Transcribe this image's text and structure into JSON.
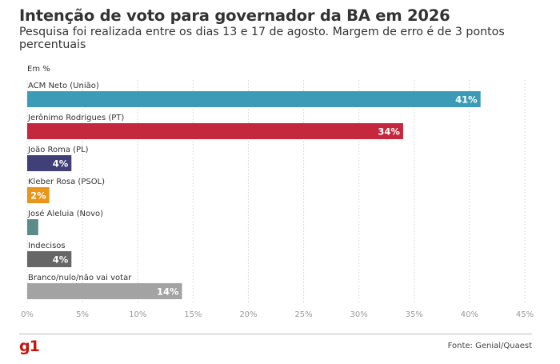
{
  "header": {
    "title": "Intenção de voto para governador da BA em 2026",
    "subtitle": "Pesquisa foi realizada entre os dias 13 e 17 de agosto. Margem de erro é de 3 pontos percentuais"
  },
  "unit_label": "Em %",
  "footer": {
    "logo": "g1",
    "source": "Fonte: Genial/Quaest"
  },
  "chart_data": {
    "type": "bar",
    "orientation": "horizontal",
    "categories": [
      "ACM Neto (União)",
      "Jerônimo Rodrigues (PT)",
      "João Roma (PL)",
      "Kleber Rosa (PSOL)",
      "José Aleluia (Novo)",
      "Indecisos",
      "Branco/nulo/não vai votar"
    ],
    "values": [
      41,
      34,
      4,
      2,
      1,
      4,
      14
    ],
    "value_labels": [
      "41%",
      "34%",
      "4%",
      "2%",
      "",
      "4%",
      "14%"
    ],
    "colors": [
      "#3c9cb8",
      "#c5283d",
      "#403f78",
      "#e8951a",
      "#5d8b8a",
      "#666666",
      "#a3a3a3"
    ],
    "xlim": [
      0,
      45
    ],
    "ticks": [
      0,
      5,
      10,
      15,
      20,
      25,
      30,
      35,
      40,
      45
    ],
    "tick_labels": [
      "0%",
      "5%",
      "10%",
      "15%",
      "20%",
      "25%",
      "30%",
      "35%",
      "40%",
      "45%"
    ],
    "grid": true,
    "legend": "none"
  }
}
